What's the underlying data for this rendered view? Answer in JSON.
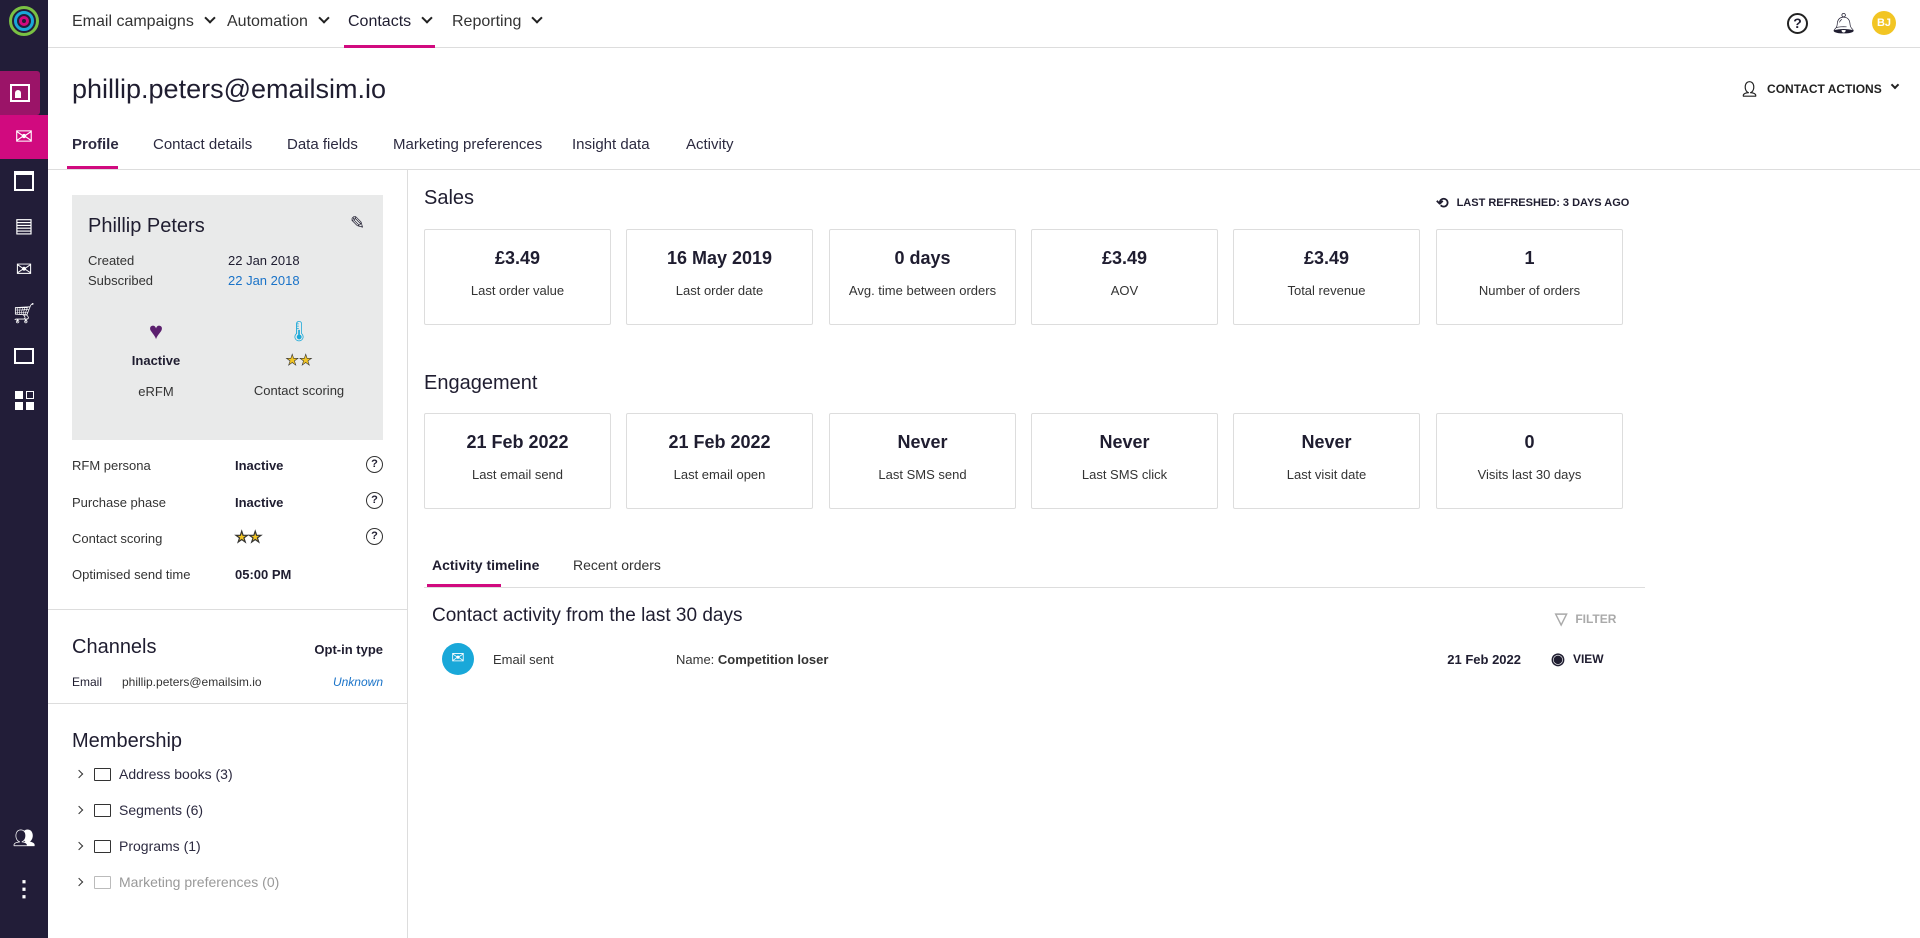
{
  "colors": {
    "accent": "#d10a7f",
    "sidebar": "#221d38",
    "link": "#1a73c8",
    "avatar": "#f2c523",
    "activity_icon": "#19a8d9"
  },
  "nav": {
    "items": [
      {
        "label": "Email campaigns"
      },
      {
        "label": "Automation"
      },
      {
        "label": "Contacts",
        "active": true
      },
      {
        "label": "Reporting"
      }
    ],
    "avatar_initials": "BJ"
  },
  "sidebar": {
    "icons": [
      "contact-card-icon",
      "email-icon",
      "landing-page-icon",
      "sms-icon",
      "email-code-icon",
      "cart-icon",
      "chat-icon",
      "apps-icon",
      "users-icon",
      "more-icon"
    ]
  },
  "header": {
    "title": "phillip.peters@emailsim.io",
    "contact_actions": "CONTACT ACTIONS"
  },
  "tabs": [
    {
      "label": "Profile",
      "active": true
    },
    {
      "label": "Contact details"
    },
    {
      "label": "Data fields"
    },
    {
      "label": "Marketing preferences"
    },
    {
      "label": "Insight data"
    },
    {
      "label": "Activity"
    }
  ],
  "profile": {
    "name": "Phillip Peters",
    "created_label": "Created",
    "created": "22 Jan 2018",
    "subscribed_label": "Subscribed",
    "subscribed": "22 Jan 2018",
    "erfm_value": "Inactive",
    "erfm_label": "eRFM",
    "scoring_label": "Contact scoring",
    "scoring_stars": 2,
    "rows": [
      {
        "label": "RFM persona",
        "value": "Inactive"
      },
      {
        "label": "Purchase phase",
        "value": "Inactive"
      },
      {
        "label": "Contact scoring",
        "stars": 2
      },
      {
        "label": "Optimised send time",
        "value": "05:00 PM"
      }
    ]
  },
  "channels": {
    "title": "Channels",
    "optin_header": "Opt-in type",
    "email_label": "Email",
    "email": "phillip.peters@emailsim.io",
    "optin": "Unknown"
  },
  "membership": {
    "title": "Membership",
    "items": [
      {
        "label": "Address books (3)"
      },
      {
        "label": "Segments (6)"
      },
      {
        "label": "Programs (1)"
      },
      {
        "label": "Marketing preferences (0)",
        "disabled": true
      }
    ]
  },
  "sales": {
    "title": "Sales",
    "refreshed": "LAST REFRESHED: 3 DAYS AGO",
    "cards": [
      {
        "value": "£3.49",
        "label": "Last order value"
      },
      {
        "value": "16 May 2019",
        "label": "Last order date"
      },
      {
        "value": "0 days",
        "label": "Avg. time between orders"
      },
      {
        "value": "£3.49",
        "label": "AOV"
      },
      {
        "value": "£3.49",
        "label": "Total revenue"
      },
      {
        "value": "1",
        "label": "Number of orders"
      }
    ]
  },
  "engagement": {
    "title": "Engagement",
    "cards": [
      {
        "value": "21 Feb 2022",
        "label": "Last email send"
      },
      {
        "value": "21 Feb 2022",
        "label": "Last email open"
      },
      {
        "value": "Never",
        "label": "Last SMS send"
      },
      {
        "value": "Never",
        "label": "Last SMS click"
      },
      {
        "value": "Never",
        "label": "Last visit date"
      },
      {
        "value": "0",
        "label": "Visits last 30 days"
      }
    ]
  },
  "activity": {
    "tabs": [
      {
        "label": "Activity timeline",
        "active": true
      },
      {
        "label": "Recent orders"
      }
    ],
    "heading": "Contact activity from the last 30 days",
    "filter": "FILTER",
    "rows": [
      {
        "type": "Email sent",
        "name_label": "Name:",
        "name": "Competition loser",
        "date": "21 Feb 2022",
        "view": "VIEW"
      }
    ]
  }
}
